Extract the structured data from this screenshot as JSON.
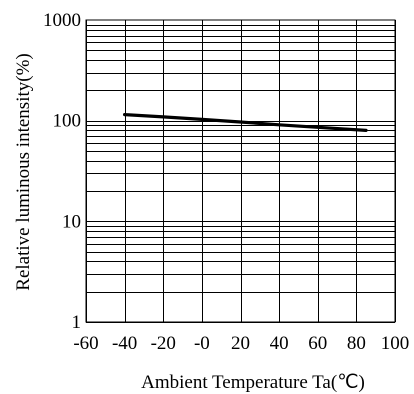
{
  "chart_data": {
    "type": "line",
    "title": "",
    "xlabel": "Ambient Temperature Ta(℃)",
    "ylabel": "Relative luminous intensity(%)",
    "xlim": [
      -60,
      100
    ],
    "ylim": [
      1,
      1000
    ],
    "yscale": "log",
    "grid": true,
    "x_ticks": [
      -60,
      -40,
      -20,
      0,
      20,
      40,
      60,
      80,
      100
    ],
    "x_tick_labels": [
      "-60",
      "-40",
      "-20",
      "-0",
      "20",
      "40",
      "60",
      "80",
      "100"
    ],
    "y_ticks": [
      1,
      10,
      100,
      1000
    ],
    "y_tick_labels": [
      "1",
      "10",
      "100",
      "1000"
    ],
    "series": [
      {
        "x": [
          -40,
          -20,
          0,
          20,
          40,
          60,
          85
        ],
        "y": [
          115,
          109,
          103,
          97,
          91,
          86,
          80
        ]
      }
    ]
  }
}
